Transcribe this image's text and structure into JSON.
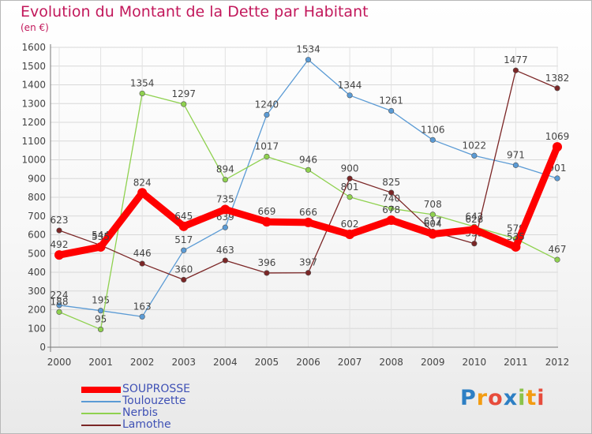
{
  "chart_data": {
    "type": "line",
    "title": "Evolution du Montant de la Dette par Habitant",
    "subtitle": "(en €)",
    "xlabel": "",
    "ylabel": "",
    "ylim": [
      0,
      1600
    ],
    "yticks": [
      "0",
      "100",
      "200",
      "300",
      "400",
      "500",
      "600",
      "700",
      "800",
      "900",
      "1000",
      "1100",
      "1200",
      "1300",
      "1400",
      "1500",
      "1600"
    ],
    "categories": [
      "2000",
      "2001",
      "2002",
      "2003",
      "2004",
      "2005",
      "2006",
      "2007",
      "2008",
      "2009",
      "2010",
      "2011",
      "2012"
    ],
    "grid": true,
    "legend_position": "bottom-left",
    "series": [
      {
        "name": "SOUPROSSE",
        "color": "#ff0000",
        "values": [
          492,
          535,
          824,
          645,
          735,
          669,
          666,
          602,
          678,
          604,
          628,
          535,
          1069
        ]
      },
      {
        "name": "Toulouzette",
        "color": "#5b9bd5",
        "values": [
          224,
          195,
          163,
          517,
          639,
          1240,
          1534,
          1344,
          1261,
          1106,
          1022,
          971,
          901
        ]
      },
      {
        "name": "Nerbis",
        "color": "#8fd14f",
        "values": [
          188,
          95,
          1354,
          1297,
          894,
          1017,
          946,
          801,
          740,
          708,
          643,
          579,
          467
        ]
      },
      {
        "name": "Lamothe",
        "color": "#7b2626",
        "values": [
          623,
          544,
          446,
          360,
          463,
          396,
          397,
          900,
          825,
          617,
          553,
          1477,
          1382
        ]
      }
    ]
  },
  "logo": {
    "text": "Proxiti",
    "letters": [
      "P",
      "r",
      "o",
      "x",
      "i",
      "t",
      "i"
    ]
  }
}
